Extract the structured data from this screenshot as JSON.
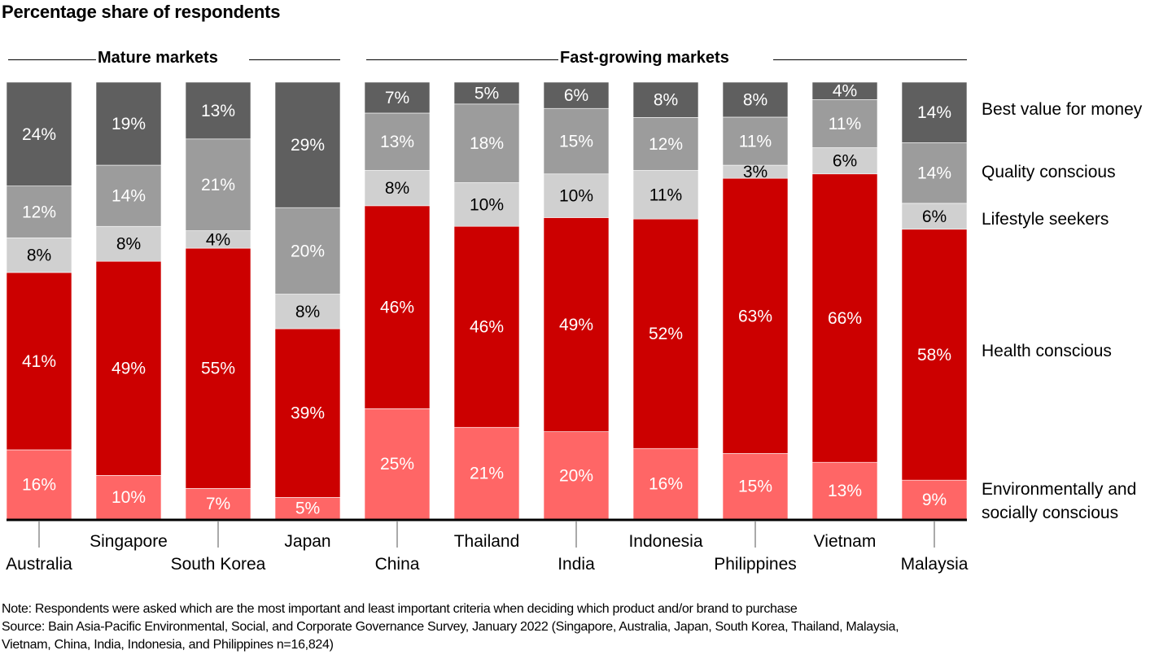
{
  "chart_data": {
    "type": "bar",
    "stacked": true,
    "title": "Percentage share of respondents",
    "xlabel": "",
    "ylabel": "",
    "ylim": [
      0,
      100
    ],
    "grid": false,
    "legend_placement": "right",
    "groups": [
      {
        "label": "Mature markets",
        "categories": [
          "Australia",
          "Singapore",
          "South Korea",
          "Japan"
        ]
      },
      {
        "label": "Fast-growing markets",
        "categories": [
          "China",
          "Thailand",
          "India",
          "Indonesia",
          "Philippines",
          "Vietnam",
          "Malaysia"
        ]
      }
    ],
    "categories": [
      "Australia",
      "Singapore",
      "South Korea",
      "Japan",
      "China",
      "Thailand",
      "India",
      "Indonesia",
      "Philippines",
      "Vietnam",
      "Malaysia"
    ],
    "series": [
      {
        "name": "Environmentally and socially conscious",
        "legend_lines": [
          "Environmentally and",
          "socially conscious"
        ],
        "color": "#ff6666",
        "label_color": "#ffffff",
        "values": [
          16,
          10,
          7,
          5,
          25,
          21,
          20,
          16,
          15,
          13,
          9
        ]
      },
      {
        "name": "Health conscious",
        "legend_lines": [
          "Health conscious"
        ],
        "color": "#cc0000",
        "label_color": "#ffffff",
        "values": [
          41,
          49,
          55,
          39,
          46,
          46,
          49,
          52,
          63,
          66,
          58
        ]
      },
      {
        "name": "Lifestyle seekers",
        "legend_lines": [
          "Lifestyle seekers"
        ],
        "color": "#d0d0d0",
        "label_color": "#000000",
        "values": [
          8,
          8,
          4,
          8,
          8,
          10,
          10,
          11,
          3,
          6,
          6
        ]
      },
      {
        "name": "Quality conscious",
        "legend_lines": [
          "Quality conscious"
        ],
        "color": "#9c9c9c",
        "label_color": "#ffffff",
        "values": [
          12,
          14,
          21,
          20,
          13,
          18,
          15,
          12,
          11,
          11,
          14
        ]
      },
      {
        "name": "Best value for money",
        "legend_lines": [
          "Best value for money"
        ],
        "color": "#5f5f5f",
        "label_color": "#ffffff",
        "values": [
          24,
          19,
          13,
          29,
          7,
          5,
          6,
          8,
          8,
          4,
          14
        ]
      }
    ],
    "value_suffix": "%"
  },
  "notes": {
    "note": "Note: Respondents were asked which are the most important and least important criteria when deciding which product and/or brand to purchase",
    "source_line1": "Source: Bain Asia-Pacific Environmental, Social, and Corporate Governance Survey, January 2022 (Singapore, Australia, Japan, South Korea, Thailand, Malaysia,",
    "source_line2": "Vietnam, China, India, Indonesia, and Philippines n=16,824)"
  }
}
